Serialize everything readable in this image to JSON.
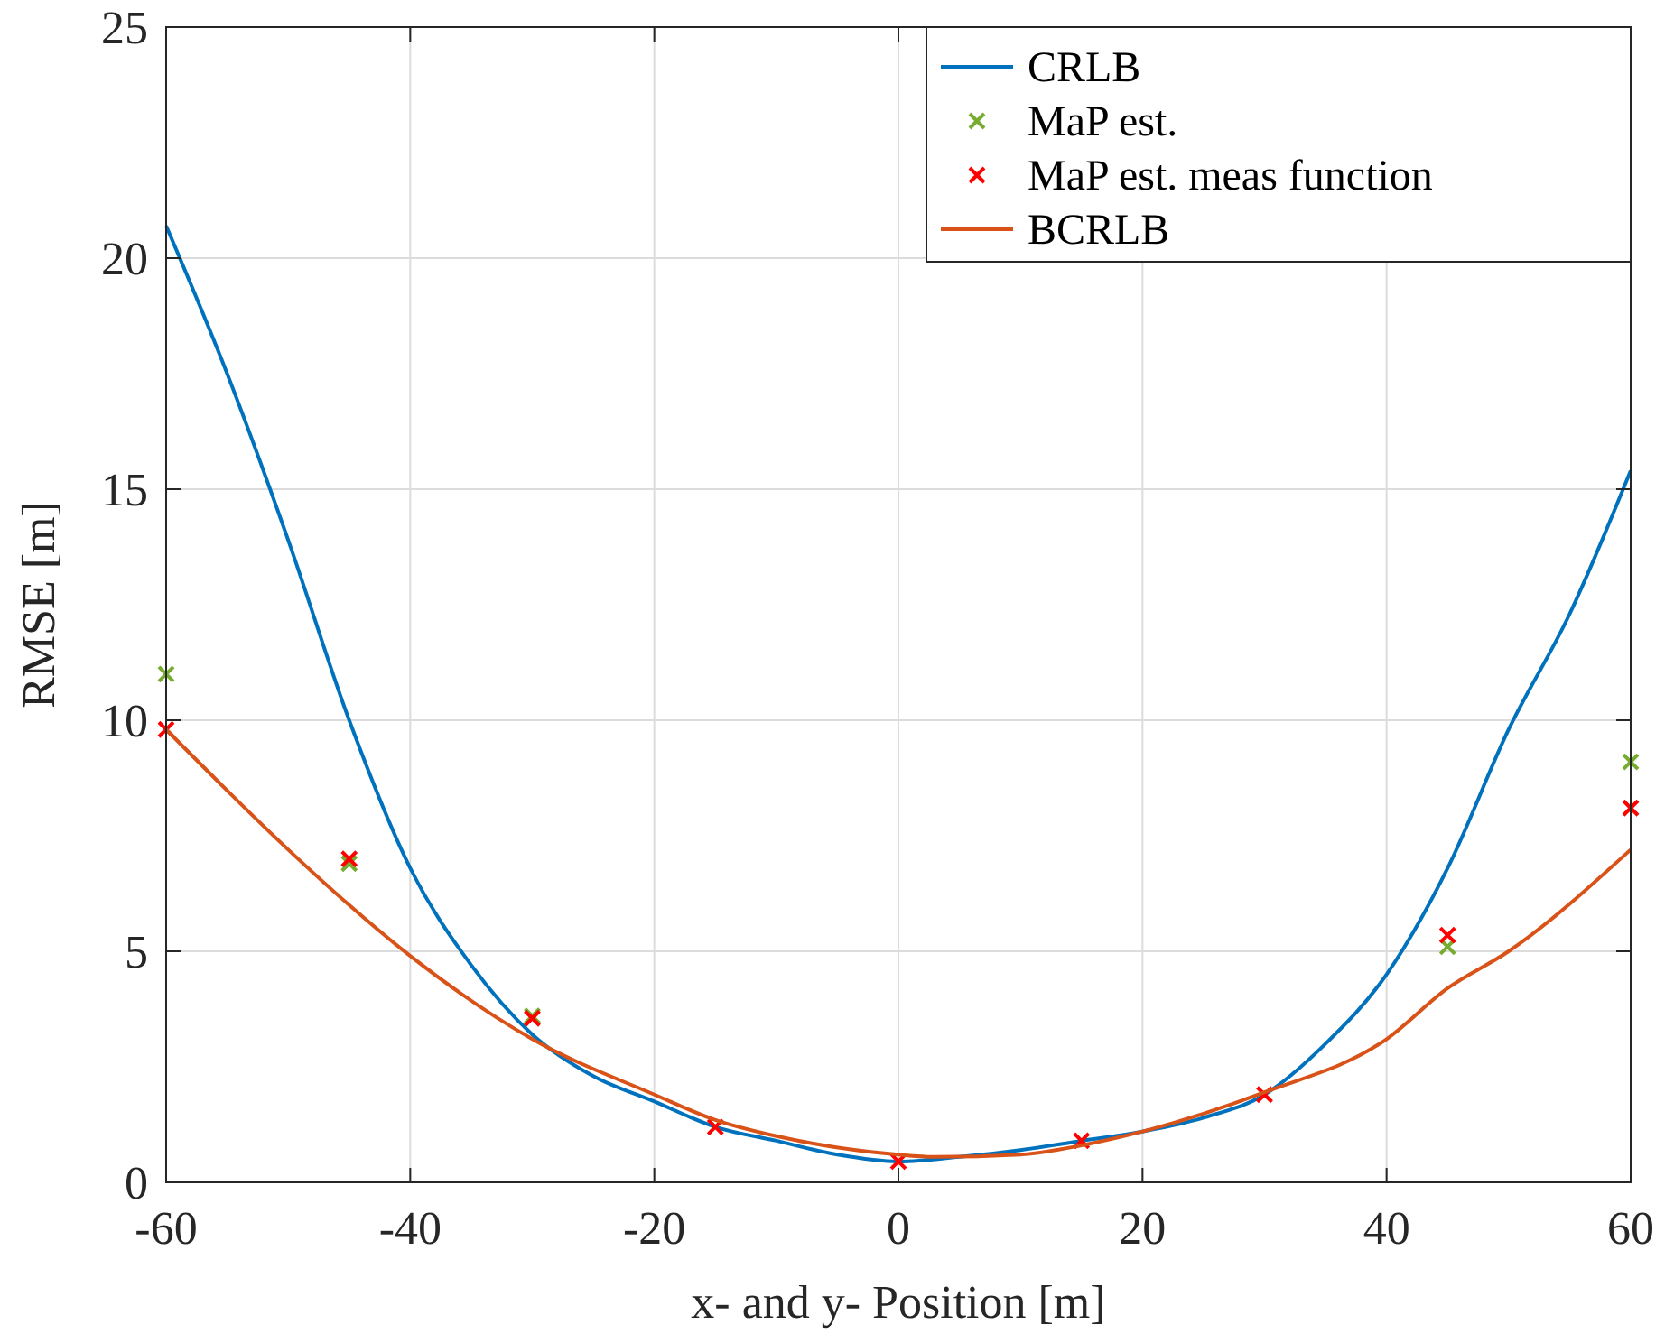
{
  "chart_data": {
    "type": "line",
    "xlabel": "x- and y- Position [m]",
    "ylabel": "RMSE [m]",
    "xlim": [
      -60,
      60
    ],
    "xticks": [
      -60,
      -40,
      -20,
      0,
      20,
      40,
      60
    ],
    "ylim": [
      0,
      25
    ],
    "yticks": [
      0,
      5,
      10,
      15,
      20,
      25
    ],
    "grid": true,
    "legend": "top right",
    "series": [
      {
        "name": "CRLB",
        "color": "#0072bd",
        "x": [
          -60,
          -55,
          -50,
          -45,
          -40,
          -35,
          -30,
          -25,
          -20,
          -15,
          -10,
          -5,
          0,
          5,
          10,
          15,
          20,
          25,
          30,
          35,
          40,
          45,
          50,
          55,
          60
        ],
        "values": [
          20.7,
          17.5,
          13.9,
          10.0,
          6.8,
          4.7,
          3.2,
          2.3,
          1.75,
          1.2,
          0.9,
          0.6,
          0.45,
          0.55,
          0.7,
          0.9,
          1.1,
          1.4,
          1.9,
          3.0,
          4.5,
          6.8,
          9.8,
          12.3,
          15.4
        ]
      },
      {
        "name": "MaP est.",
        "type": "scatter",
        "marker": "cross",
        "color": "#77ac30",
        "x": [
          -60,
          -45,
          -30,
          45,
          60
        ],
        "values": [
          11.0,
          6.9,
          3.6,
          5.1,
          9.1
        ]
      },
      {
        "name": "MaP est. meas function",
        "type": "scatter",
        "marker": "cross",
        "color": "#ff0000",
        "x": [
          -60,
          -45,
          -30,
          -15,
          0,
          15,
          30,
          45,
          60
        ],
        "values": [
          9.8,
          7.0,
          3.55,
          1.2,
          0.45,
          0.9,
          1.9,
          5.35,
          8.1
        ]
      },
      {
        "name": "BCRLB",
        "color": "#d95319",
        "x": [
          -60,
          -50,
          -45,
          -40,
          -30,
          -20,
          -15,
          -10,
          0,
          3,
          10,
          15,
          20,
          30,
          40,
          45,
          50,
          60
        ],
        "values": [
          9.8,
          7.2,
          6.0,
          4.9,
          3.1,
          1.9,
          1.35,
          1.0,
          0.6,
          0.55,
          0.6,
          0.8,
          1.1,
          1.95,
          3.1,
          4.2,
          5.0,
          7.2
        ]
      }
    ]
  }
}
